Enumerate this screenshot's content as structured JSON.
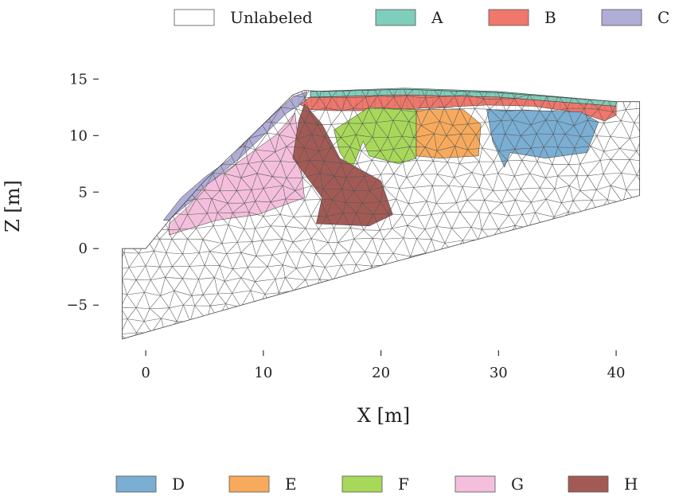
{
  "chart_data": {
    "type": "mesh",
    "xlabel": "X [m]",
    "ylabel": "Z [m]",
    "xlim": [
      -4,
      42.5
    ],
    "ylim": [
      -9,
      16.5
    ],
    "xticks": [
      0,
      10,
      20,
      30,
      40
    ],
    "yticks": [
      -5,
      0,
      5,
      10,
      15
    ],
    "grid": false,
    "legend_top": [
      {
        "key": "Unlabeled",
        "label": "Unlabeled",
        "color": "#ffffff"
      },
      {
        "key": "A",
        "label": "A",
        "color": "#7fcdbb"
      },
      {
        "key": "B",
        "label": "B",
        "color": "#f0776b"
      },
      {
        "key": "C",
        "label": "C",
        "color": "#b0aed6"
      }
    ],
    "legend_bottom": [
      {
        "key": "D",
        "label": "D",
        "color": "#7aaed3"
      },
      {
        "key": "E",
        "label": "E",
        "color": "#f7aa5c"
      },
      {
        "key": "F",
        "label": "F",
        "color": "#a8d85a"
      },
      {
        "key": "G",
        "label": "G",
        "color": "#f4bfdc"
      },
      {
        "key": "H",
        "label": "H",
        "color": "#a35a55"
      }
    ],
    "domain_outline": [
      [
        -2,
        -8
      ],
      [
        -2,
        0
      ],
      [
        0,
        0
      ],
      [
        2,
        2.5
      ],
      [
        5,
        6
      ],
      [
        9,
        10
      ],
      [
        12.5,
        13.6
      ],
      [
        13.5,
        14
      ],
      [
        15,
        13.9
      ],
      [
        22,
        14.1
      ],
      [
        30,
        13.8
      ],
      [
        40,
        13
      ],
      [
        42,
        13
      ],
      [
        42,
        4.7
      ],
      [
        20,
        -1.5
      ],
      [
        -2,
        -8
      ]
    ],
    "regions": [
      {
        "label": "A",
        "points": [
          [
            14,
            13.9
          ],
          [
            22,
            14.2
          ],
          [
            30,
            13.9
          ],
          [
            40,
            13
          ],
          [
            40,
            12.6
          ],
          [
            30,
            13.4
          ],
          [
            22,
            13.6
          ],
          [
            14,
            13.4
          ]
        ]
      },
      {
        "label": "B",
        "points": [
          [
            14,
            13.4
          ],
          [
            22,
            13.6
          ],
          [
            30,
            13.4
          ],
          [
            40,
            12.6
          ],
          [
            40,
            11.8
          ],
          [
            39,
            11.3
          ],
          [
            37,
            12
          ],
          [
            33,
            12.6
          ],
          [
            29,
            12.7
          ],
          [
            27,
            12.6
          ],
          [
            23,
            12.4
          ],
          [
            20,
            12.2
          ],
          [
            16,
            12.2
          ],
          [
            14,
            12.3
          ],
          [
            13,
            12.8
          ]
        ]
      },
      {
        "label": "C",
        "points": [
          [
            1.5,
            2.5
          ],
          [
            3,
            4.5
          ],
          [
            5,
            6.3
          ],
          [
            7,
            7.8
          ],
          [
            9,
            10
          ],
          [
            11,
            12
          ],
          [
            12.5,
            13.4
          ],
          [
            13.7,
            13.9
          ],
          [
            13.5,
            13
          ],
          [
            12,
            12
          ],
          [
            10,
            10
          ],
          [
            8,
            8
          ],
          [
            6,
            6.3
          ],
          [
            4,
            4.3
          ],
          [
            2.5,
            3
          ],
          [
            2,
            2.5
          ]
        ]
      },
      {
        "label": "D",
        "points": [
          [
            29,
            12.3
          ],
          [
            33,
            12.2
          ],
          [
            37,
            12.1
          ],
          [
            38.5,
            11.2
          ],
          [
            37.5,
            8.5
          ],
          [
            34,
            8
          ],
          [
            31,
            8.5
          ],
          [
            30.5,
            7.2
          ],
          [
            29.5,
            9.5
          ]
        ]
      },
      {
        "label": "E",
        "points": [
          [
            23,
            12.3
          ],
          [
            27,
            12.3
          ],
          [
            28.5,
            11
          ],
          [
            28.3,
            8.2
          ],
          [
            25,
            8
          ],
          [
            23,
            8.2
          ]
        ]
      },
      {
        "label": "F",
        "points": [
          [
            16,
            10.5
          ],
          [
            19,
            12.5
          ],
          [
            23,
            12.3
          ],
          [
            23,
            8
          ],
          [
            21.5,
            7.5
          ],
          [
            19,
            8.2
          ],
          [
            18.5,
            9.5
          ],
          [
            17.5,
            7
          ],
          [
            16.5,
            8.5
          ]
        ]
      },
      {
        "label": "G",
        "points": [
          [
            2,
            1.2
          ],
          [
            6,
            2.5
          ],
          [
            9.5,
            3
          ],
          [
            13.5,
            4.5
          ],
          [
            12.7,
            12
          ],
          [
            11,
            10
          ],
          [
            9,
            8.5
          ],
          [
            7,
            7
          ],
          [
            5,
            5.5
          ],
          [
            3.5,
            3.6
          ],
          [
            2,
            2.2
          ]
        ]
      },
      {
        "label": "H",
        "points": [
          [
            13,
            11.3
          ],
          [
            13.5,
            12.8
          ],
          [
            15,
            11
          ],
          [
            16.5,
            8
          ],
          [
            20,
            6
          ],
          [
            21,
            3
          ],
          [
            19,
            2
          ],
          [
            14.5,
            2.2
          ],
          [
            15,
            4.5
          ],
          [
            12.5,
            8
          ]
        ]
      }
    ]
  }
}
